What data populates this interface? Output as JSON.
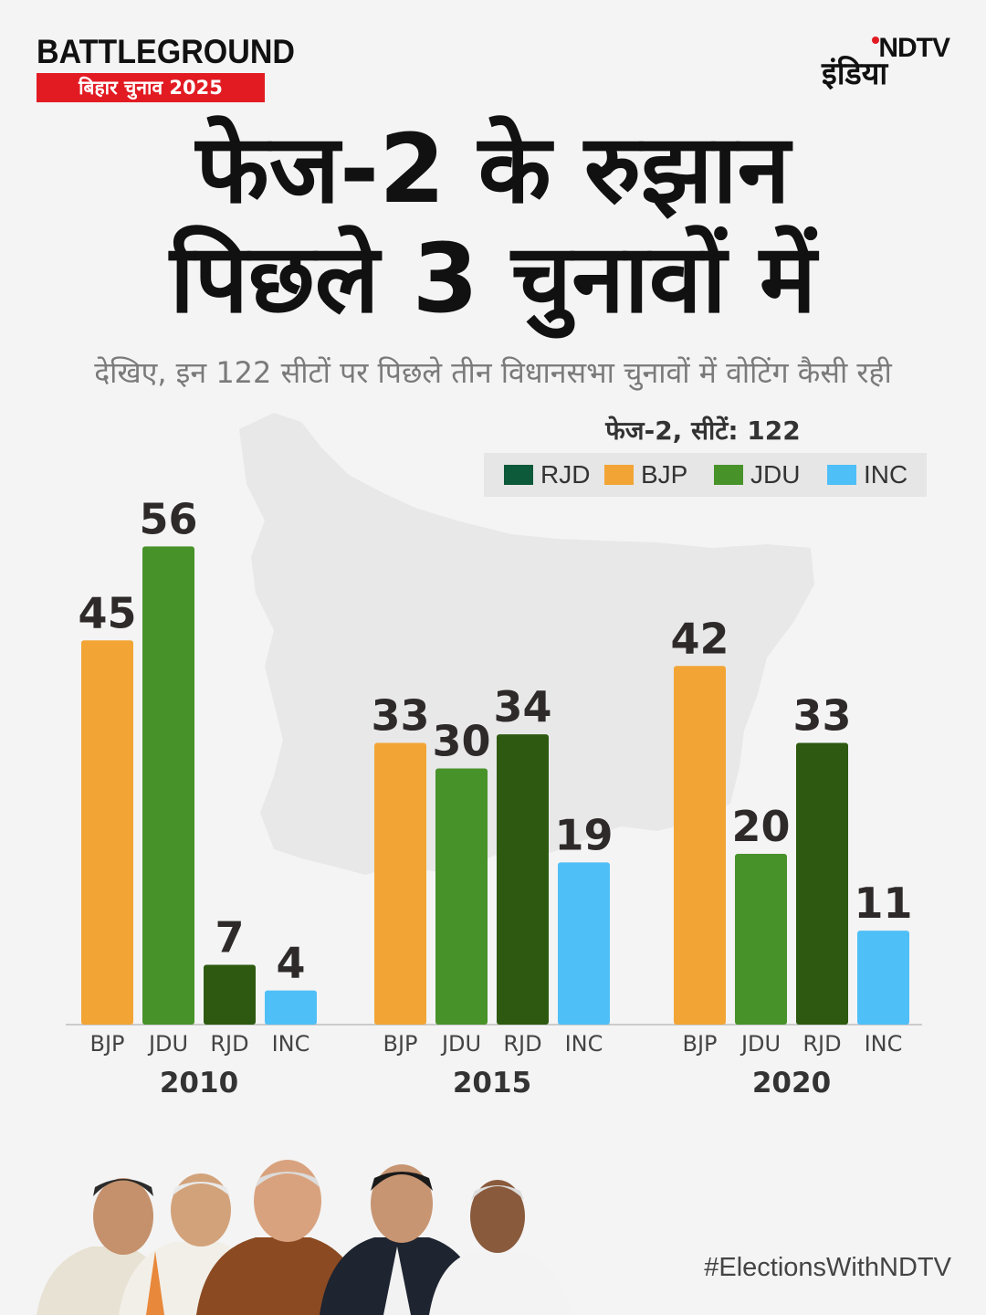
{
  "header": {
    "brand": "BATTLEGROUND",
    "brand_sub": "बिहार चुनाव 2025",
    "logo_en": "NDTV",
    "logo_hi": "इंडिया"
  },
  "title_line1": "फेज-2 के रुझान",
  "title_line2": "पिछले 3 चुनावों में",
  "subtitle": "देखिए, इन 122 सीटों पर पिछले तीन विधानसभा चुनावों में वोटिंग कैसी रही",
  "phase_label": "फेज-2, सीटें: 122",
  "legend": [
    {
      "label": "RJD",
      "color": "#0d5a3a"
    },
    {
      "label": "BJP",
      "color": "#f2a535"
    },
    {
      "label": "JDU",
      "color": "#48922a"
    },
    {
      "label": "INC",
      "color": "#4fbff7"
    }
  ],
  "colors": {
    "BJP": "#f2a535",
    "JDU": "#48922a",
    "RJD": "#2d5a10",
    "INC": "#4fbff7"
  },
  "chart_data": {
    "type": "bar",
    "title": "फेज-2 के रुझान पिछले 3 चुनावों में",
    "ylim": [
      0,
      60
    ],
    "groups": [
      {
        "year": "2010",
        "categories": [
          "BJP",
          "JDU",
          "RJD",
          "INC"
        ],
        "values": [
          45,
          56,
          7,
          4
        ]
      },
      {
        "year": "2015",
        "categories": [
          "BJP",
          "JDU",
          "RJD",
          "INC"
        ],
        "values": [
          33,
          30,
          34,
          19
        ]
      },
      {
        "year": "2020",
        "categories": [
          "BJP",
          "JDU",
          "RJD",
          "INC"
        ],
        "values": [
          42,
          20,
          33,
          11
        ]
      }
    ]
  },
  "hashtag": "#ElectionsWithNDTV"
}
